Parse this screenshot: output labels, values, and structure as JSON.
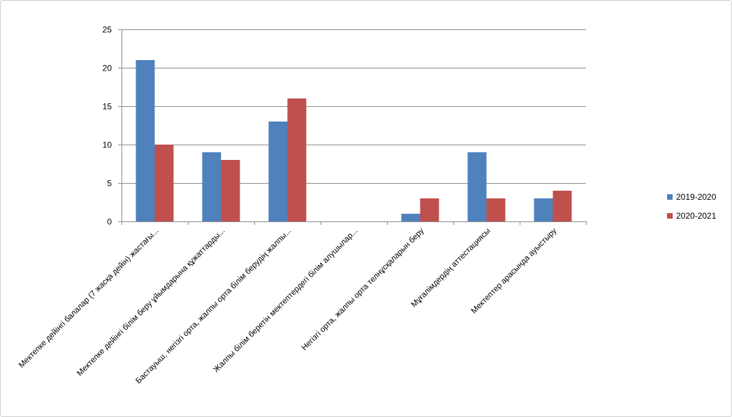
{
  "chart_data": {
    "type": "bar",
    "title": "",
    "xlabel": "",
    "ylabel": "",
    "ylim": [
      0,
      25
    ],
    "yticks": [
      0,
      5,
      10,
      15,
      20,
      25
    ],
    "grid": true,
    "legend_position": "right",
    "categories": [
      "Мектепке дейінгі балалар (7 жасқа дейін) жастағы...",
      "Мектепке дейінгі білім беру ұйымдарына құжаттарды...",
      "Бастауыш, негізгі орта, жалпы орта білім берудің жалпы...",
      "Жалпы білім беретін мектептердегі білім алушылар...",
      "Негізгі орта, жалпы орта телнұсқаларын беру",
      "Мұғалімдердің аттестациясы",
      "Мектептер арасында ауыстыру"
    ],
    "series": [
      {
        "name": "2019-2020",
        "color": "#4f81bd",
        "values": [
          21,
          9,
          13,
          0,
          1,
          9,
          3
        ]
      },
      {
        "name": "2020-2021",
        "color": "#c0504d",
        "values": [
          10,
          8,
          16,
          0,
          3,
          3,
          4
        ]
      }
    ]
  }
}
